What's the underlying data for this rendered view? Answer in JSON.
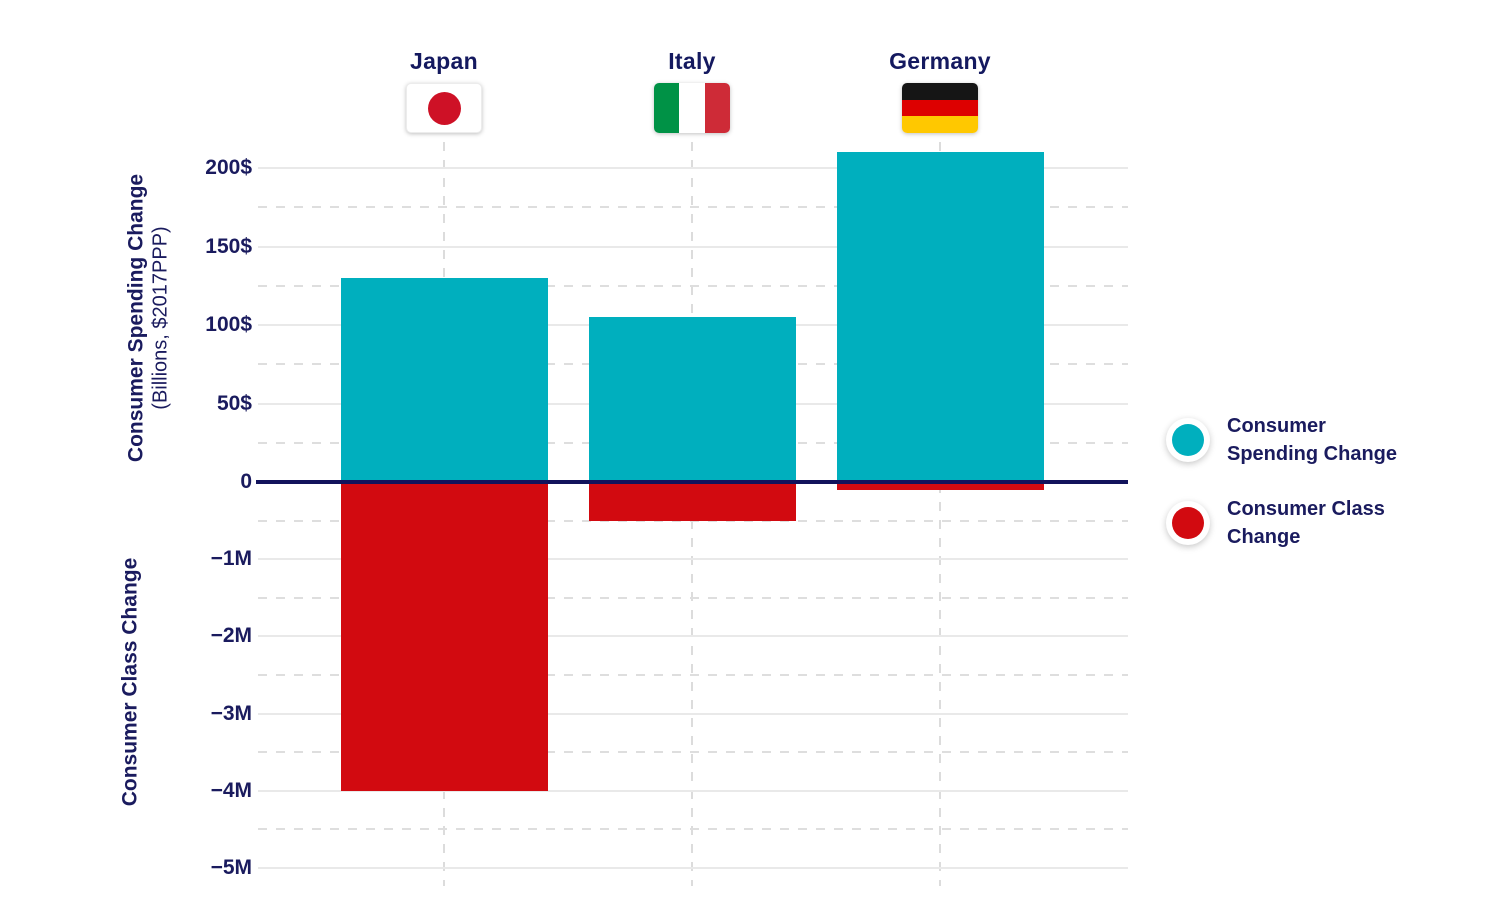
{
  "colors": {
    "text_navy": "#1A1B5E",
    "spending_teal": "#00AFBE",
    "class_red": "#D20A10",
    "zero_line": "#12135C",
    "gridline_major": "#E9E9E9",
    "gridline_minor_dashed": "#DEDEDE",
    "background": "#FFFFFF"
  },
  "chart_data": {
    "type": "bar",
    "orientation": "vertical",
    "grid": "on",
    "legend_position": "right",
    "categories": [
      {
        "label": "Japan",
        "flag": {
          "layout": "disc",
          "background": "#FFFFFF",
          "disc_color": "#CE1126"
        }
      },
      {
        "label": "Italy",
        "flag": {
          "layout": "vstripes",
          "colors": [
            "#009246",
            "#FFFFFF",
            "#CE2B37"
          ]
        }
      },
      {
        "label": "Germany",
        "flag": {
          "layout": "hstripes",
          "colors": [
            "#151515",
            "#DD0000",
            "#FFC800"
          ]
        }
      }
    ],
    "series": [
      {
        "name": "Consumer Spending Change",
        "color": "#00AFBE",
        "axis": "top",
        "values": [
          130,
          105,
          210
        ]
      },
      {
        "name": "Consumer Class Change",
        "color": "#D20A10",
        "axis": "bottom",
        "values": [
          -4.0,
          -0.5,
          -0.1
        ]
      }
    ],
    "top_axis": {
      "title": "Consumer Spending Change",
      "subtitle": "(Billions, $2017PPP)",
      "ticks": [
        "200$",
        "150$",
        "100$",
        "50$",
        "0"
      ],
      "tick_values": [
        200,
        150,
        100,
        50,
        0
      ],
      "minor_tick_values": [
        175,
        125,
        75,
        25
      ],
      "range": [
        0,
        235
      ]
    },
    "bottom_axis": {
      "title": "Consumer Class Change",
      "ticks": [
        "−1M",
        "−2M",
        "−3M",
        "−4M",
        "−5M"
      ],
      "tick_values": [
        -1,
        -2,
        -3,
        -4,
        -5
      ],
      "minor_tick_values": [
        -0.5,
        -1.5,
        -2.5,
        -3.5,
        -4.5
      ],
      "range": [
        0,
        -5.6
      ]
    }
  },
  "legend": {
    "items": [
      {
        "label": "Consumer Spending Change",
        "line1": "Consumer",
        "line2": "Spending Change",
        "color": "#00AFBE"
      },
      {
        "label": "Consumer Class Change",
        "line1": "Consumer Class",
        "line2": "Change",
        "color": "#D20A10"
      }
    ]
  }
}
